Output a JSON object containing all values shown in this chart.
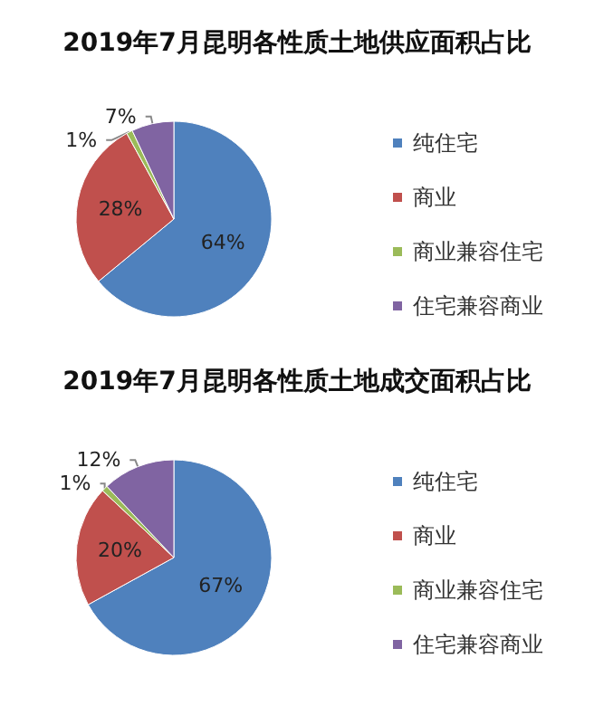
{
  "chart_data": [
    {
      "type": "pie",
      "title": "2019年7月昆明各性质土地供应面积占比",
      "categories": [
        "纯住宅",
        "商业",
        "商业兼容住宅",
        "住宅兼容商业"
      ],
      "values": [
        64,
        28,
        1,
        7
      ],
      "value_labels": [
        "64%",
        "28%",
        "1%",
        "7%"
      ],
      "colors": [
        "#4f81bd",
        "#c0504d",
        "#9bbb59",
        "#8064a2"
      ],
      "legend": "right"
    },
    {
      "type": "pie",
      "title": "2019年7月昆明各性质土地成交面积占比",
      "categories": [
        "纯住宅",
        "商业",
        "商业兼容住宅",
        "住宅兼容商业"
      ],
      "values": [
        67,
        20,
        1,
        12
      ],
      "value_labels": [
        "67%",
        "20%",
        "1%",
        "12%"
      ],
      "colors": [
        "#4f81bd",
        "#c0504d",
        "#9bbb59",
        "#8064a2"
      ],
      "legend": "right"
    }
  ]
}
